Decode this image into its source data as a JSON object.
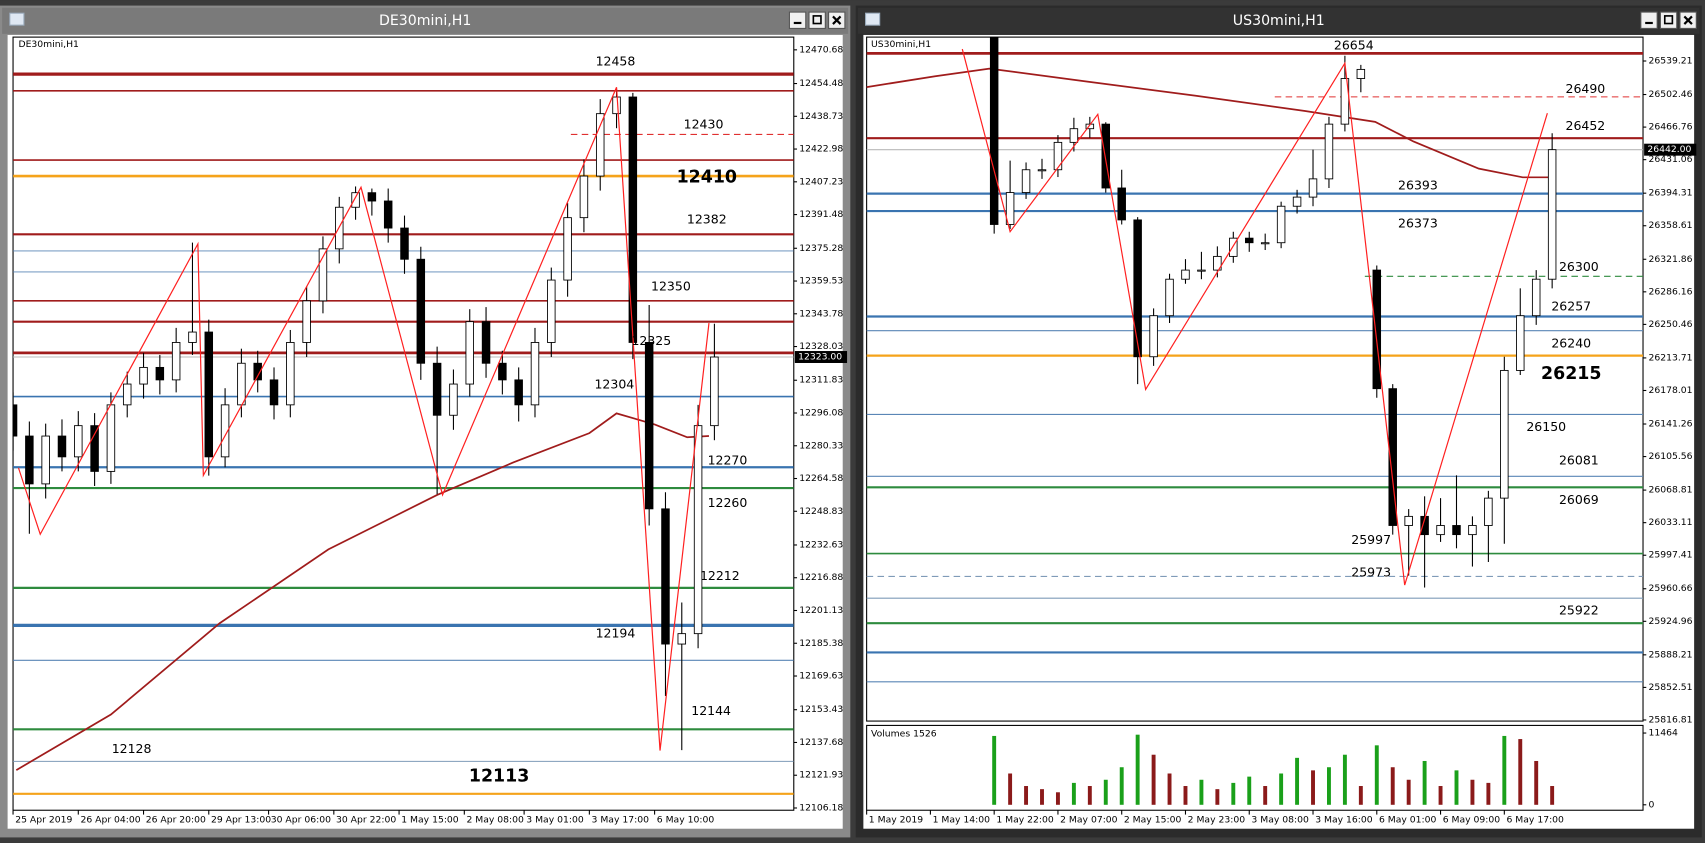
{
  "chart_data": [
    {
      "type": "candlestick",
      "window_title": "DE30mini,H1",
      "label": "DE30mini,H1",
      "xlim": [
        0,
        143.6
      ],
      "ylim": [
        12105.1,
        12476.8
      ],
      "yticks": [
        12470.68,
        12454.48,
        12438.73,
        12422.98,
        12407.23,
        12391.48,
        12375.28,
        12359.53,
        12343.78,
        12328.03,
        12311.83,
        12296.08,
        12280.33,
        12264.58,
        12248.83,
        12232.63,
        12216.88,
        12201.13,
        12185.38,
        12169.63,
        12153.43,
        12137.68,
        12121.93,
        12106.18
      ],
      "xticks": [
        {
          "value": 0,
          "label": "25 Apr 2019"
        },
        {
          "value": 12,
          "label": "26 Apr 04:00"
        },
        {
          "value": 24,
          "label": "26 Apr 20:00"
        },
        {
          "value": 36,
          "label": "29 Apr 13:00"
        },
        {
          "value": 47,
          "label": "30 Apr 06:00"
        },
        {
          "value": 59,
          "label": "30 Apr 22:00"
        },
        {
          "value": 71,
          "label": "1 May 15:00"
        },
        {
          "value": 83,
          "label": "2 May 08:00"
        },
        {
          "value": 94,
          "label": "3 May 01:00"
        },
        {
          "value": 106,
          "label": "3 May 17:00"
        },
        {
          "value": 118,
          "label": "6 May 10:00"
        }
      ],
      "x": [
        0,
        3,
        6,
        9,
        12,
        15,
        18,
        21,
        24,
        27,
        30,
        33,
        36,
        39,
        42,
        45,
        48,
        51,
        54,
        57,
        60,
        63,
        66,
        69,
        72,
        75,
        78,
        81,
        84,
        87,
        90,
        93,
        96,
        99,
        102,
        105,
        108,
        111,
        114,
        117,
        120,
        123,
        126,
        129
      ],
      "open": [
        12300,
        12285,
        12262,
        12285,
        12275,
        12290,
        12268,
        12300,
        12310,
        12318,
        12312,
        12330,
        12335,
        12275,
        12300,
        12320,
        12312,
        12300,
        12330,
        12350,
        12375,
        12395,
        12402,
        12398,
        12385,
        12370,
        12320,
        12295,
        12310,
        12340,
        12320,
        12312,
        12300,
        12330,
        12360,
        12390,
        12410,
        12440,
        12448,
        12330,
        12250,
        12185,
        12190,
        12290
      ],
      "high": [
        12306,
        12292,
        12291,
        12293,
        12297,
        12296,
        12306,
        12316,
        12325,
        12324,
        12337,
        12378,
        12341,
        12308,
        12327,
        12326,
        12318,
        12336,
        12357,
        12381,
        12400,
        12405,
        12404,
        12404,
        12391,
        12376,
        12328,
        12317,
        12346,
        12347,
        12326,
        12318,
        12337,
        12366,
        12397,
        12418,
        12447,
        12452,
        12450,
        12348,
        12258,
        12205,
        12300,
        12339
      ],
      "low": [
        12278,
        12238,
        12255,
        12268,
        12268,
        12261,
        12262,
        12294,
        12303,
        12305,
        12306,
        12324,
        12266,
        12270,
        12294,
        12306,
        12293,
        12294,
        12323,
        12344,
        12368,
        12389,
        12391,
        12378,
        12363,
        12312,
        12257,
        12288,
        12304,
        12313,
        12305,
        12292,
        12294,
        12323,
        12352,
        12383,
        12403,
        12433,
        12322,
        12242,
        12160,
        12134,
        12183,
        12283
      ],
      "close": [
        12285,
        12262,
        12285,
        12275,
        12290,
        12268,
        12300,
        12310,
        12318,
        12312,
        12330,
        12335,
        12275,
        12300,
        12320,
        12312,
        12300,
        12330,
        12350,
        12375,
        12395,
        12402,
        12398,
        12385,
        12370,
        12320,
        12295,
        12310,
        12340,
        12320,
        12312,
        12300,
        12330,
        12360,
        12390,
        12410,
        12440,
        12448,
        12330,
        12250,
        12185,
        12190,
        12290,
        12323
      ],
      "zigzag": {
        "color": "#ff2020",
        "x": [
          1,
          5,
          34,
          35,
          64,
          79,
          111,
          119,
          128
        ],
        "values": [
          12269.7,
          12237.8,
          12377.4,
          12266.1,
          12404.6,
          12256.7,
          12452.7,
          12133.8,
          12339.3
        ]
      },
      "ma": {
        "color": "#a01c1c",
        "x": [
          0.6,
          18,
          38,
          58,
          78,
          92,
          106,
          111,
          118,
          124,
          128
        ],
        "values": [
          12124.4,
          12151.1,
          12195,
          12230.5,
          12256.7,
          12272.3,
          12286.4,
          12295.9,
          12290.6,
          12284.4,
          12285
        ]
      },
      "levels": [
        {
          "value": 12459,
          "color": "#a01c1c",
          "width": 3
        },
        {
          "value": 12451,
          "color": "#a01c1c",
          "width": 1.5
        },
        {
          "value": 12430,
          "color": "#e03030",
          "width": 1,
          "dash": true,
          "from": 102.6
        },
        {
          "value": 12417.7,
          "color": "#a01c1c",
          "width": 1.5
        },
        {
          "value": 12410,
          "color": "#f5a31a",
          "width": 2.5
        },
        {
          "value": 12382,
          "color": "#a01c1c",
          "width": 2
        },
        {
          "value": 12374,
          "color": "#5a86b6",
          "width": 0.8
        },
        {
          "value": 12363.9,
          "color": "#5a86b6",
          "width": 0.8
        },
        {
          "value": 12350,
          "color": "#a01c1c",
          "width": 1.5
        },
        {
          "value": 12340,
          "color": "#a01c1c",
          "width": 2
        },
        {
          "value": 12325,
          "color": "#a01c1c",
          "width": 2.5
        },
        {
          "value": 12304,
          "color": "#3a74b0",
          "width": 1.5
        },
        {
          "value": 12270,
          "color": "#3a74b0",
          "width": 2
        },
        {
          "value": 12260,
          "color": "#2e8b3e",
          "width": 2
        },
        {
          "value": 12212,
          "color": "#2e8b3e",
          "width": 2
        },
        {
          "value": 12194,
          "color": "#3a74b0",
          "width": 3
        },
        {
          "value": 12177.2,
          "color": "#5a86b6",
          "width": 1
        },
        {
          "value": 12144,
          "color": "#2e8b3e",
          "width": 2
        },
        {
          "value": 12128.6,
          "color": "#7f9bb8",
          "width": 1
        },
        {
          "value": 12113,
          "color": "#f5a31a",
          "width": 2
        }
      ],
      "annotations": [
        "12458",
        "12430",
        "12410",
        "12382",
        "12350",
        "12325",
        "12304",
        "12270",
        "12260",
        "12212",
        "12194",
        "12144",
        "12128",
        "12113"
      ],
      "current_price": {
        "value": 12323,
        "label": "12323.00"
      }
    },
    {
      "type": "candlestick",
      "window_title": "US30mini,H1",
      "label": "US30mini,H1",
      "xlim": [
        0,
        97.4
      ],
      "ylim": [
        25815.6,
        26565.4
      ],
      "yticks": [
        26539.21,
        26502.46,
        26466.76,
        26431.06,
        26394.31,
        26358.61,
        26321.86,
        26286.16,
        26250.46,
        26213.71,
        26178.01,
        26141.26,
        26105.56,
        26068.81,
        26033.11,
        25997.41,
        25960.66,
        25924.96,
        25888.21,
        25852.51,
        25816.81
      ],
      "xticks": [
        {
          "value": 0,
          "label": "1 May 2019"
        },
        {
          "value": 8,
          "label": "1 May 14:00"
        },
        {
          "value": 16,
          "label": "1 May 22:00"
        },
        {
          "value": 24,
          "label": "2 May 07:00"
        },
        {
          "value": 32,
          "label": "2 May 15:00"
        },
        {
          "value": 40,
          "label": "2 May 23:00"
        },
        {
          "value": 48,
          "label": "3 May 08:00"
        },
        {
          "value": 56,
          "label": "3 May 16:00"
        },
        {
          "value": 64,
          "label": "6 May 01:00"
        },
        {
          "value": 72,
          "label": "6 May 09:00"
        },
        {
          "value": 80,
          "label": "6 May 17:00"
        }
      ],
      "x": [
        16,
        18,
        20,
        22,
        24,
        26,
        28,
        30,
        32,
        34,
        36,
        38,
        40,
        42,
        44,
        46,
        48,
        50,
        52,
        54,
        56,
        58,
        60,
        62,
        64,
        66,
        68,
        70,
        72,
        74,
        76,
        78,
        80,
        82,
        84,
        86
      ],
      "open": [
        26565,
        26360,
        26395,
        26420,
        26420,
        26450,
        26465,
        26470,
        26400,
        26365,
        26215,
        26260,
        26300,
        26310,
        26310,
        26325,
        26345,
        26340,
        26340,
        26380,
        26390,
        26410,
        26470,
        26520,
        26310,
        26180,
        26030,
        26040,
        26020,
        26030,
        26020,
        26030,
        26060,
        26200,
        26260,
        26300
      ],
      "high": [
        26565,
        26430,
        26428,
        26432,
        26458,
        26477,
        26478,
        26472,
        26420,
        26368,
        26268,
        26306,
        26322,
        26330,
        26336,
        26352,
        26352,
        26350,
        26385,
        26398,
        26442,
        26478,
        26545,
        26535,
        26315,
        26185,
        26048,
        26062,
        26060,
        26085,
        26040,
        26068,
        26215,
        26290,
        26310,
        26460
      ],
      "low": [
        26350,
        26355,
        26388,
        26410,
        26412,
        26440,
        26455,
        26395,
        26360,
        26185,
        26205,
        26252,
        26295,
        26300,
        26302,
        26318,
        26330,
        26332,
        26334,
        26372,
        26380,
        26400,
        26462,
        26505,
        26170,
        26020,
        25975,
        25962,
        26012,
        26005,
        25985,
        25990,
        26010,
        26195,
        26250,
        26290
      ],
      "close": [
        26360,
        26395,
        26420,
        26420,
        26450,
        26465,
        26470,
        26400,
        26365,
        26215,
        26260,
        26300,
        26310,
        26310,
        26325,
        26345,
        26340,
        26340,
        26380,
        26390,
        26410,
        26470,
        26520,
        26530,
        26180,
        26030,
        26040,
        26020,
        26030,
        26020,
        26030,
        26060,
        26200,
        26260,
        26300,
        26442
      ],
      "zigzag": {
        "color": "#ff2020",
        "x": [
          12,
          18,
          29,
          35,
          60,
          67.5,
          85.4
        ],
        "values": [
          26552.3,
          26352.1,
          26480.8,
          26179.2,
          26536.8,
          25964.7,
          26482
        ]
      },
      "ma": {
        "color": "#a01c1c",
        "x": [
          0,
          8.6,
          15.4,
          27.7,
          41.3,
          55,
          63.8,
          68.6,
          76.8,
          82.3,
          86.4
        ],
        "values": [
          26510.6,
          26522.5,
          26530.9,
          26516.6,
          26501.1,
          26484.4,
          26472.5,
          26451,
          26421.2,
          26411.7,
          26411.7
        ]
      },
      "levels": [
        {
          "value": 26547.6,
          "color": "#a01c1c",
          "width": 2.5
        },
        {
          "value": 26499.9,
          "color": "#e03030",
          "width": 1,
          "dash": true,
          "from": 51.2
        },
        {
          "value": 26454.6,
          "color": "#a01c1c",
          "width": 2
        },
        {
          "value": 26393.8,
          "color": "#3a74b0",
          "width": 2
        },
        {
          "value": 26374.7,
          "color": "#3a74b0",
          "width": 2
        },
        {
          "value": 26303.2,
          "color": "#2e8b3e",
          "width": 1,
          "dash": true,
          "from": 62.5
        },
        {
          "value": 26259.1,
          "color": "#3a74b0",
          "width": 2
        },
        {
          "value": 26243.6,
          "color": "#5a86b6",
          "width": 1
        },
        {
          "value": 26216.2,
          "color": "#f5a31a",
          "width": 2
        },
        {
          "value": 26151.8,
          "color": "#5a86b6",
          "width": 1
        },
        {
          "value": 26083.9,
          "color": "#5a86b6",
          "width": 1
        },
        {
          "value": 26071.9,
          "color": "#2e8b3e",
          "width": 2
        },
        {
          "value": 25999.2,
          "color": "#2e8b3e",
          "width": 1.5
        },
        {
          "value": 25974.2,
          "color": "#7f9bb8",
          "width": 1,
          "dash": true,
          "from": 0
        },
        {
          "value": 25950.3,
          "color": "#7f9bb8",
          "width": 1
        },
        {
          "value": 25922.9,
          "color": "#2e8b3e",
          "width": 2
        },
        {
          "value": 25890.8,
          "color": "#3a74b0",
          "width": 2
        },
        {
          "value": 25858.6,
          "color": "#5a86b6",
          "width": 1
        }
      ],
      "annotations": [
        "26654",
        "26490",
        "26452",
        "26393",
        "26373",
        "26300",
        "26257",
        "26240",
        "26215",
        "26150",
        "26081",
        "26069",
        "25997",
        "25973",
        "25922"
      ],
      "current_price": {
        "value": 26442,
        "label": "26442.00"
      },
      "volumes": {
        "label": "Volumes 1526",
        "vlim": [
          0,
          11464
        ],
        "vticks": [
          11464,
          0
        ],
        "up_color": "#1aa01a",
        "down_color": "#8b1a1a",
        "values": [
          11000,
          5000,
          3000,
          2500,
          2000,
          3500,
          3000,
          4000,
          6000,
          11200,
          8000,
          5000,
          3000,
          4000,
          2500,
          3500,
          4500,
          3000,
          5000,
          7500,
          5500,
          6000,
          8000,
          3000,
          9500,
          6000,
          4000,
          7000,
          3000,
          5500,
          4000,
          3500,
          11000,
          10500,
          7000,
          3000
        ]
      }
    }
  ]
}
